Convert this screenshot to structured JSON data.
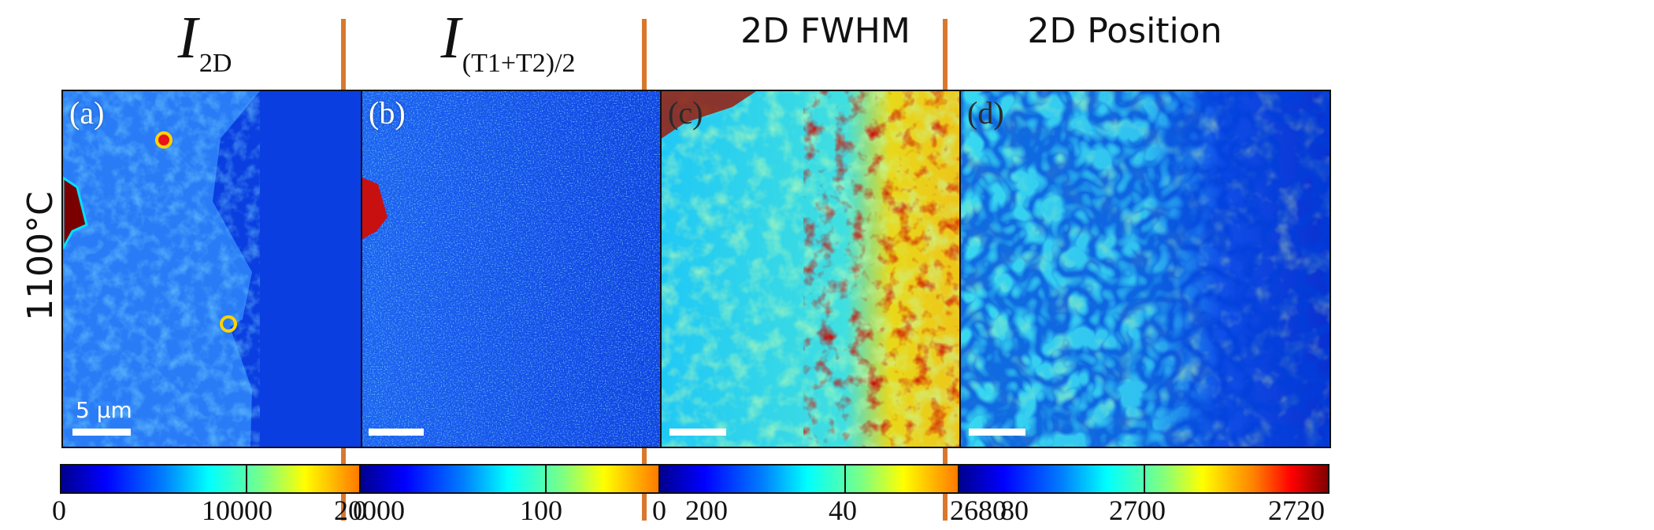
{
  "row_label": "1100°C",
  "panels": [
    {
      "letter": "(a)",
      "title_main": "I",
      "title_sub": "2D",
      "scale_text": "5 μm",
      "colorbar": {
        "min": "0",
        "mid": "10000",
        "max": "20000"
      }
    },
    {
      "letter": "(b)",
      "title_main": "I",
      "title_sub": "(T1+T2)/2",
      "colorbar": {
        "min": "0",
        "mid": "100",
        "max": "200"
      }
    },
    {
      "letter": "(c)",
      "title": "2D FWHM",
      "colorbar": {
        "min": "0",
        "mid": "40",
        "max": "80"
      }
    },
    {
      "letter": "(d)",
      "title": "2D Position",
      "colorbar": {
        "min": "2680",
        "mid": "2700",
        "max": "2720"
      }
    }
  ],
  "colors": {
    "separator": "#d9782d",
    "marker_outline": "#ffd400",
    "marker_fill": "#e8141a"
  }
}
